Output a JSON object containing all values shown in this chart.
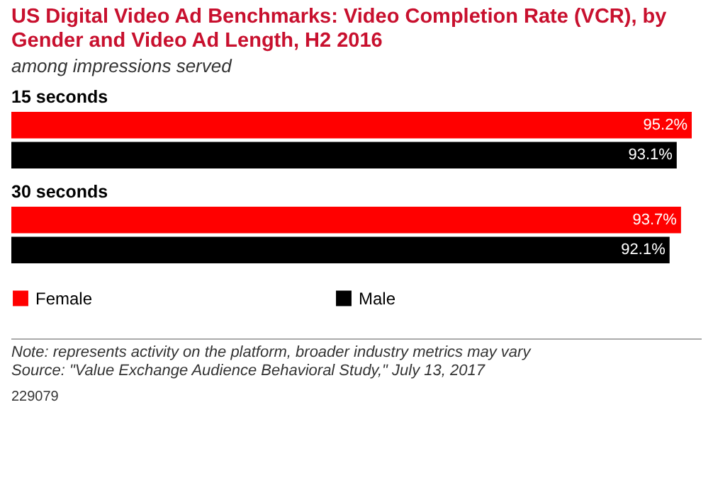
{
  "chart_data": {
    "type": "bar",
    "orientation": "horizontal",
    "title": "US Digital Video Ad Benchmarks: Video Completion Rate (VCR), by Gender and Video Ad Length, H2 2016",
    "subtitle": "among impressions served",
    "categories": [
      "15 seconds",
      "30 seconds"
    ],
    "series": [
      {
        "name": "Female",
        "color": "#ff0000",
        "values": [
          95.2,
          93.7
        ],
        "value_labels": [
          "95.2%",
          "93.7%"
        ]
      },
      {
        "name": "Male",
        "color": "#000000",
        "values": [
          93.1,
          92.1
        ],
        "value_labels": [
          "93.1%",
          "92.1%"
        ]
      }
    ],
    "legend": "bottom",
    "annotations": [
      "Note: represents activity on the platform, broader industry metrics may vary",
      "Source: \"Value Exchange Audience Behavioral Study,\" July 13, 2017",
      "229079"
    ]
  }
}
